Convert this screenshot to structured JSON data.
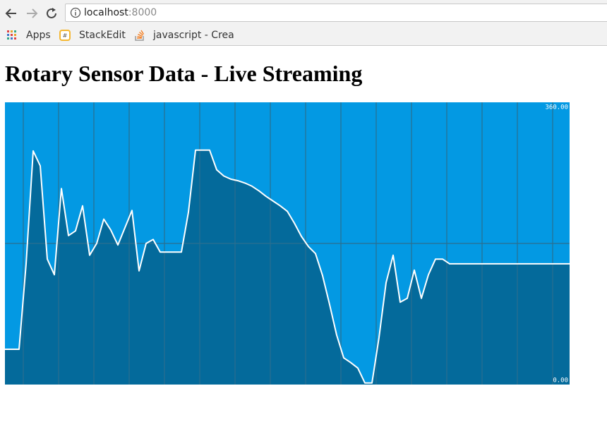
{
  "browser": {
    "url_host": "localhost",
    "url_port": ":8000",
    "bookmarks": [
      "Apps",
      "StackEdit",
      "javascript - Crea"
    ]
  },
  "chart_data": {
    "type": "line",
    "title": "Rotary Sensor Data - Live Streaming",
    "ylim": [
      0,
      360
    ],
    "yticks": [
      {
        "value": 0,
        "label": "0.00"
      },
      {
        "value": 360,
        "label": "360.00"
      }
    ],
    "grid": true,
    "background": "#0399e3",
    "grid_color": "#2b6f8f",
    "fill_color": "#046a9b",
    "series": [
      {
        "color": "#ffffff",
        "values": [
          45,
          45,
          45,
          154,
          298,
          279,
          160,
          140,
          250,
          190,
          196,
          228,
          165,
          180,
          211,
          197,
          178,
          200,
          222,
          145,
          180,
          185,
          169,
          169,
          169,
          169,
          220,
          299,
          299,
          299,
          274,
          266,
          262,
          260,
          257,
          253,
          247,
          240,
          234,
          228,
          221,
          206,
          189,
          176,
          167,
          139,
          102,
          63,
          34,
          28,
          21,
          2,
          2,
          60,
          130,
          165,
          105,
          110,
          146,
          110,
          140,
          160,
          160,
          154,
          154,
          154,
          154,
          154,
          154,
          154,
          154,
          154,
          154,
          154,
          154,
          154,
          154,
          154,
          154,
          154,
          154
        ]
      }
    ]
  }
}
